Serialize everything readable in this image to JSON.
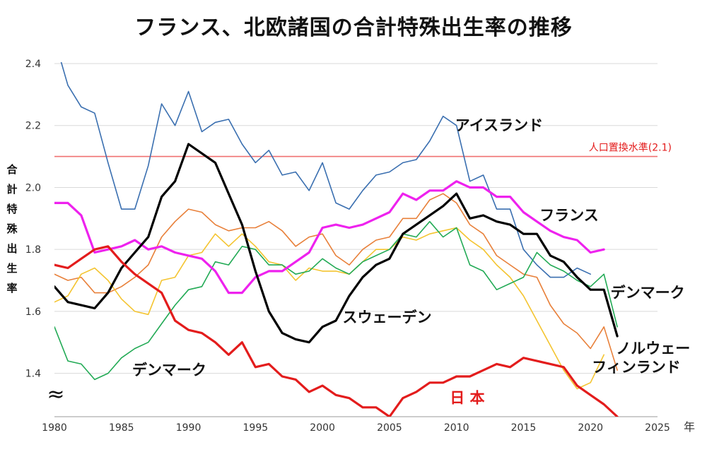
{
  "title": "フランス、北欧諸国の合計特殊出生率の推移",
  "chart_data": {
    "type": "line",
    "title": "フランス、北欧諸国の合計特殊出生率の推移",
    "ylabel": "合計特殊出生率",
    "xlabel": "年",
    "xlim": [
      1980,
      2025
    ],
    "ylim": [
      1.26,
      2.4
    ],
    "xticks": [
      "1980",
      "1985",
      "1990",
      "1995",
      "2000",
      "2005",
      "2010",
      "2015",
      "2020",
      "2025"
    ],
    "yticks": [
      "1.4",
      "1.6",
      "1.8",
      "2.0",
      "2.2",
      "2.4"
    ],
    "axis_break_symbol": "≈",
    "grid": "horizontal",
    "reference_line": {
      "label": "人口置換水準(2.1)",
      "value": 2.1,
      "color": "#f07070"
    },
    "series": [
      {
        "name": "アイスランド",
        "color": "#3a6fb0",
        "width": 1.6,
        "x": [
          1980,
          1981,
          1982,
          1983,
          1984,
          1985,
          1986,
          1987,
          1988,
          1989,
          1990,
          1991,
          1992,
          1993,
          1994,
          1995,
          1996,
          1997,
          1998,
          1999,
          2000,
          2001,
          2002,
          2003,
          2004,
          2005,
          2006,
          2007,
          2008,
          2009,
          2010,
          2011,
          2012,
          2013,
          2014,
          2015,
          2016,
          2017,
          2018,
          2019,
          2020
        ],
        "values": [
          2.48,
          2.33,
          2.26,
          2.24,
          2.08,
          1.93,
          1.93,
          2.07,
          2.27,
          2.2,
          2.31,
          2.18,
          2.21,
          2.22,
          2.14,
          2.08,
          2.12,
          2.04,
          2.05,
          1.99,
          2.08,
          1.95,
          1.93,
          1.99,
          2.04,
          2.05,
          2.08,
          2.09,
          2.15,
          2.23,
          2.2,
          2.02,
          2.04,
          1.93,
          1.93,
          1.8,
          1.75,
          1.71,
          1.71,
          1.74,
          1.72
        ]
      },
      {
        "name": "ノルウェー",
        "color": "#e8803a",
        "width": 1.6,
        "x": [
          1980,
          1981,
          1982,
          1983,
          1984,
          1985,
          1986,
          1987,
          1988,
          1989,
          1990,
          1991,
          1992,
          1993,
          1994,
          1995,
          1996,
          1997,
          1998,
          1999,
          2000,
          2001,
          2002,
          2003,
          2004,
          2005,
          2006,
          2007,
          2008,
          2009,
          2010,
          2011,
          2012,
          2013,
          2014,
          2015,
          2016,
          2017,
          2018,
          2019,
          2020,
          2021,
          2022
        ],
        "values": [
          1.72,
          1.7,
          1.71,
          1.66,
          1.66,
          1.68,
          1.71,
          1.75,
          1.84,
          1.89,
          1.93,
          1.92,
          1.88,
          1.86,
          1.87,
          1.87,
          1.89,
          1.86,
          1.81,
          1.84,
          1.85,
          1.78,
          1.75,
          1.8,
          1.83,
          1.84,
          1.9,
          1.9,
          1.96,
          1.98,
          1.95,
          1.88,
          1.85,
          1.78,
          1.75,
          1.72,
          1.71,
          1.62,
          1.56,
          1.53,
          1.48,
          1.55,
          1.41
        ]
      },
      {
        "name": "フィンランド",
        "color": "#f4c430",
        "width": 1.6,
        "x": [
          1980,
          1981,
          1982,
          1983,
          1984,
          1985,
          1986,
          1987,
          1988,
          1989,
          1990,
          1991,
          1992,
          1993,
          1994,
          1995,
          1996,
          1997,
          1998,
          1999,
          2000,
          2001,
          2002,
          2003,
          2004,
          2005,
          2006,
          2007,
          2008,
          2009,
          2010,
          2011,
          2012,
          2013,
          2014,
          2015,
          2016,
          2017,
          2018,
          2019,
          2020,
          2021
        ],
        "values": [
          1.63,
          1.65,
          1.72,
          1.74,
          1.7,
          1.64,
          1.6,
          1.59,
          1.7,
          1.71,
          1.78,
          1.79,
          1.85,
          1.81,
          1.85,
          1.81,
          1.76,
          1.75,
          1.7,
          1.74,
          1.73,
          1.73,
          1.72,
          1.76,
          1.8,
          1.8,
          1.84,
          1.83,
          1.85,
          1.86,
          1.87,
          1.83,
          1.8,
          1.75,
          1.71,
          1.65,
          1.57,
          1.49,
          1.41,
          1.35,
          1.37,
          1.46
        ]
      },
      {
        "name": "デンマーク",
        "color": "#22aa55",
        "width": 1.6,
        "x": [
          1980,
          1981,
          1982,
          1983,
          1984,
          1985,
          1986,
          1987,
          1988,
          1989,
          1990,
          1991,
          1992,
          1993,
          1994,
          1995,
          1996,
          1997,
          1998,
          1999,
          2000,
          2001,
          2002,
          2003,
          2004,
          2005,
          2006,
          2007,
          2008,
          2009,
          2010,
          2011,
          2012,
          2013,
          2014,
          2015,
          2016,
          2017,
          2018,
          2019,
          2020,
          2021,
          2022
        ],
        "values": [
          1.55,
          1.44,
          1.43,
          1.38,
          1.4,
          1.45,
          1.48,
          1.5,
          1.56,
          1.62,
          1.67,
          1.68,
          1.76,
          1.75,
          1.81,
          1.8,
          1.75,
          1.75,
          1.72,
          1.73,
          1.77,
          1.74,
          1.72,
          1.76,
          1.78,
          1.8,
          1.85,
          1.84,
          1.89,
          1.84,
          1.87,
          1.75,
          1.73,
          1.67,
          1.69,
          1.71,
          1.79,
          1.75,
          1.73,
          1.7,
          1.68,
          1.72,
          1.55
        ]
      },
      {
        "name": "フランス",
        "color": "#ee22ee",
        "width": 3.2,
        "x": [
          1980,
          1981,
          1982,
          1983,
          1984,
          1985,
          1986,
          1987,
          1988,
          1989,
          1990,
          1991,
          1992,
          1993,
          1994,
          1995,
          1996,
          1997,
          1998,
          1999,
          2000,
          2001,
          2002,
          2003,
          2004,
          2005,
          2006,
          2007,
          2008,
          2009,
          2010,
          2011,
          2012,
          2013,
          2014,
          2015,
          2016,
          2017,
          2018,
          2019,
          2020,
          2021
        ],
        "values": [
          1.95,
          1.95,
          1.91,
          1.79,
          1.8,
          1.81,
          1.83,
          1.8,
          1.81,
          1.79,
          1.78,
          1.77,
          1.73,
          1.66,
          1.66,
          1.71,
          1.73,
          1.73,
          1.76,
          1.79,
          1.87,
          1.88,
          1.87,
          1.88,
          1.9,
          1.92,
          1.98,
          1.96,
          1.99,
          1.99,
          2.02,
          2.0,
          2.0,
          1.97,
          1.97,
          1.92,
          1.89,
          1.86,
          1.84,
          1.83,
          1.79,
          1.8
        ]
      },
      {
        "name": "スウェーデン",
        "color": "#000000",
        "width": 3.2,
        "x": [
          1980,
          1981,
          1982,
          1983,
          1984,
          1985,
          1986,
          1987,
          1988,
          1989,
          1990,
          1991,
          1992,
          1993,
          1994,
          1995,
          1996,
          1997,
          1998,
          1999,
          2000,
          2001,
          2002,
          2003,
          2004,
          2005,
          2006,
          2007,
          2008,
          2009,
          2010,
          2011,
          2012,
          2013,
          2014,
          2015,
          2016,
          2017,
          2018,
          2019,
          2020,
          2021,
          2022
        ],
        "values": [
          1.68,
          1.63,
          1.62,
          1.61,
          1.66,
          1.74,
          1.79,
          1.84,
          1.97,
          2.02,
          2.14,
          2.11,
          2.08,
          1.98,
          1.88,
          1.73,
          1.6,
          1.53,
          1.51,
          1.5,
          1.55,
          1.57,
          1.65,
          1.71,
          1.75,
          1.77,
          1.85,
          1.88,
          1.91,
          1.94,
          1.98,
          1.9,
          1.91,
          1.89,
          1.88,
          1.85,
          1.85,
          1.78,
          1.76,
          1.71,
          1.67,
          1.67,
          1.52
        ]
      },
      {
        "name": "日 本",
        "color": "#e31c1c",
        "width": 3.2,
        "x": [
          1980,
          1981,
          1982,
          1983,
          1984,
          1985,
          1986,
          1987,
          1988,
          1989,
          1990,
          1991,
          1992,
          1993,
          1994,
          1995,
          1996,
          1997,
          1998,
          1999,
          2000,
          2001,
          2002,
          2003,
          2004,
          2005,
          2006,
          2007,
          2008,
          2009,
          2010,
          2011,
          2012,
          2013,
          2014,
          2015,
          2016,
          2017,
          2018,
          2019,
          2020,
          2021,
          2022
        ],
        "values": [
          1.75,
          1.74,
          1.77,
          1.8,
          1.81,
          1.76,
          1.72,
          1.69,
          1.66,
          1.57,
          1.54,
          1.53,
          1.5,
          1.46,
          1.5,
          1.42,
          1.43,
          1.39,
          1.38,
          1.34,
          1.36,
          1.33,
          1.32,
          1.29,
          1.29,
          1.26,
          1.32,
          1.34,
          1.37,
          1.37,
          1.39,
          1.39,
          1.41,
          1.43,
          1.42,
          1.45,
          1.44,
          1.43,
          1.42,
          1.36,
          1.33,
          1.3,
          1.26
        ]
      }
    ],
    "annotations": [
      {
        "text": "アイスランド",
        "x": 2009.9,
        "y": 2.2,
        "color": "#111"
      },
      {
        "text": "フランス",
        "x": 2016.2,
        "y": 1.91,
        "color": "#111"
      },
      {
        "text": "デンマーク",
        "x": 2021.5,
        "y": 1.66,
        "color": "#111"
      },
      {
        "text": "スウェーデン",
        "x": 2001.5,
        "y": 1.58,
        "color": "#111"
      },
      {
        "text": "ノルウェー",
        "x": 2021.9,
        "y": 1.48,
        "color": "#111"
      },
      {
        "text": "フィンランド",
        "x": 2020.1,
        "y": 1.42,
        "color": "#111"
      },
      {
        "text": "デンマーク",
        "x": 1985.8,
        "y": 1.41,
        "color": "#111"
      },
      {
        "text": "日 本",
        "x": 2009.5,
        "y": 1.32,
        "color": "#e31c1c"
      }
    ]
  }
}
